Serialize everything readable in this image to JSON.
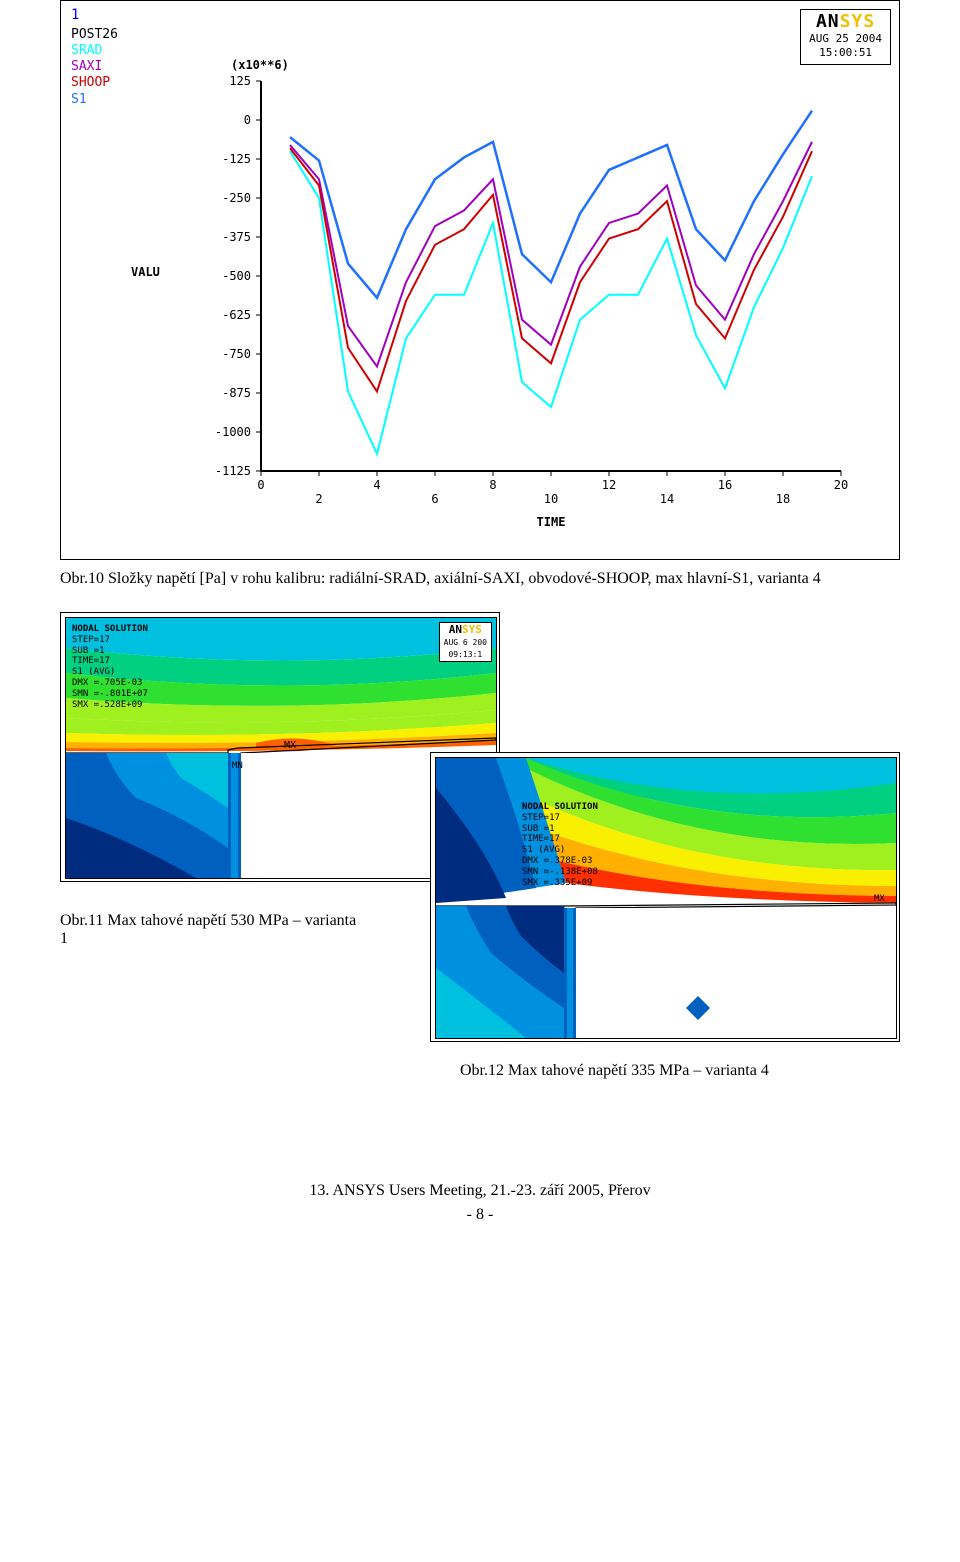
{
  "top_chart": {
    "type": "line",
    "title_prefix": "(x10**6)",
    "ylabel": "VALU",
    "xlabel": "TIME",
    "legend_number": "1",
    "legend_label1": "POST26",
    "legend_items": [
      {
        "label": "SRAD",
        "color": "#00ffff"
      },
      {
        "label": "SAXI",
        "color": "#a000c0"
      },
      {
        "label": "SHOOP",
        "color": "#d00000"
      },
      {
        "label": "S1",
        "color": "#2070ff"
      }
    ],
    "x_ticks": [
      0,
      2,
      4,
      6,
      8,
      10,
      12,
      14,
      16,
      18,
      20
    ],
    "y_ticks": [
      125,
      0,
      -125,
      -250,
      -375,
      -500,
      -625,
      -750,
      -875,
      -1000,
      -1125
    ],
    "xlim": [
      0,
      20
    ],
    "ylim": [
      -1125,
      125
    ],
    "series": {
      "SRAD": {
        "color": "#00ffff",
        "width": 2,
        "x": [
          1,
          2,
          3,
          4,
          5,
          6,
          7,
          8,
          9,
          10,
          11,
          12,
          13,
          14,
          15,
          16,
          17,
          18,
          19
        ],
        "y": [
          -100,
          -250,
          -870,
          -1070,
          -700,
          -560,
          -560,
          -330,
          -840,
          -920,
          -640,
          -560,
          -560,
          -380,
          -690,
          -860,
          -600,
          -410,
          -180
        ]
      },
      "SAXI": {
        "color": "#a000c0",
        "width": 2,
        "x": [
          1,
          2,
          3,
          4,
          5,
          6,
          7,
          8,
          9,
          10,
          11,
          12,
          13,
          14,
          15,
          16,
          17,
          18,
          19
        ],
        "y": [
          -80,
          -190,
          -660,
          -790,
          -520,
          -340,
          -290,
          -190,
          -640,
          -720,
          -470,
          -330,
          -300,
          -210,
          -530,
          -640,
          -430,
          -260,
          -70
        ]
      },
      "SHOOP": {
        "color": "#d00000",
        "width": 2,
        "x": [
          1,
          2,
          3,
          4,
          5,
          6,
          7,
          8,
          9,
          10,
          11,
          12,
          13,
          14,
          15,
          16,
          17,
          18,
          19
        ],
        "y": [
          -90,
          -210,
          -730,
          -870,
          -580,
          -400,
          -350,
          -240,
          -700,
          -780,
          -520,
          -380,
          -350,
          -260,
          -590,
          -700,
          -480,
          -310,
          -100
        ]
      },
      "S1": {
        "color": "#2070ff",
        "width": 2.5,
        "x": [
          1,
          2,
          3,
          4,
          5,
          6,
          7,
          8,
          9,
          10,
          11,
          12,
          13,
          14,
          15,
          16,
          17,
          18,
          19
        ],
        "y": [
          -55,
          -130,
          -460,
          -570,
          -350,
          -190,
          -120,
          -70,
          -430,
          -520,
          -300,
          -160,
          -120,
          -80,
          -350,
          -450,
          -260,
          -110,
          30
        ]
      }
    },
    "ansys_box": {
      "brand_a": "AN",
      "brand_b": "SYS",
      "date": "AUG 25 2004",
      "time": "15:00:51"
    },
    "axis_color": "#000000",
    "tick_font_size": 12,
    "label_font_size": 14,
    "background": "#ffffff"
  },
  "caption_top": "Obr.10 Složky napětí [Pa] v rohu kalibru: radiální-SRAD, axiální-SAXI, obvodové-SHOOP, max hlavní-S1, varianta 4",
  "sim_a": {
    "info_lines": [
      "NODAL SOLUTION",
      "STEP=17",
      "SUB =1",
      "TIME=17",
      "S1       (AVG)",
      "DMX =.705E-03",
      "SMN =-.801E+07",
      "SMX =.528E+09"
    ],
    "ansys_date": "AUG  6 200",
    "ansys_time": "09:13:1",
    "mx_label": "MX",
    "mn_label": "MN",
    "bands": [
      "#002c80",
      "#0060c0",
      "#0090e0",
      "#00c0e0",
      "#00d080",
      "#30e030",
      "#a0f020",
      "#f8f000",
      "#ffb000",
      "#ff6000"
    ]
  },
  "caption_a": "Obr.11 Max tahové napětí 530 MPa – varianta 1",
  "sim_b": {
    "info_lines": [
      "NODAL SOLUTION",
      "STEP=17",
      "SUB =1",
      "TIME=17",
      "S1       (AVG)",
      "DMX =.378E-03",
      "SMN =-.138E+08",
      "SMX =.335E+09"
    ],
    "mx_label": "MX",
    "bands": [
      "#002c80",
      "#0060c0",
      "#0090e0",
      "#00c0e0",
      "#00d080",
      "#30e030",
      "#a0f020",
      "#f8f000",
      "#ffb000",
      "#ff3000"
    ]
  },
  "caption_b": "Obr.12 Max tahové napětí 335 MPa – varianta 4",
  "footer": "13. ANSYS Users Meeting, 21.-23. září 2005, Přerov",
  "page_num": "-  8  -"
}
